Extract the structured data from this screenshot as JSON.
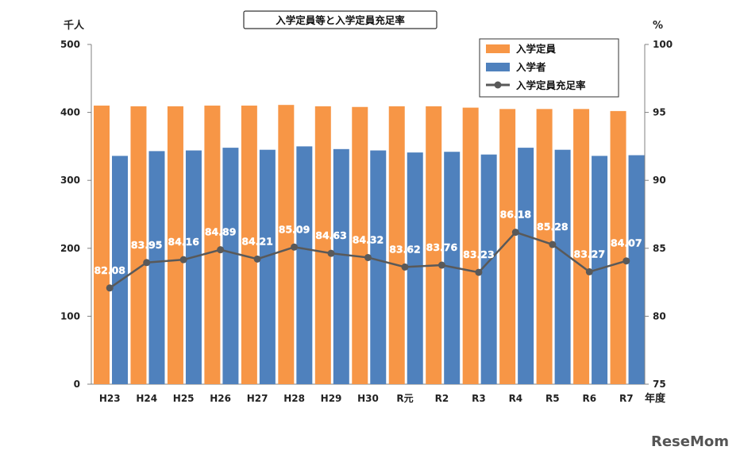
{
  "chart_data": {
    "type": "bar",
    "title": "入学定員等と入学定員充足率",
    "categories": [
      "H23",
      "H24",
      "H25",
      "H26",
      "H27",
      "H28",
      "H29",
      "H30",
      "R元",
      "R2",
      "R3",
      "R4",
      "R5",
      "R6",
      "R7"
    ],
    "x_axis_unit": "年度",
    "y_left": {
      "unit_label": "千人",
      "ylim": [
        0,
        500
      ],
      "ticks": [
        "0",
        "100",
        "200",
        "300",
        "400",
        "500"
      ]
    },
    "y_right": {
      "unit_label": "%",
      "ylim": [
        75,
        100
      ],
      "ticks": [
        "75",
        "80",
        "85",
        "90",
        "95",
        "100"
      ]
    },
    "series": [
      {
        "name": "入学定員",
        "axis": "left",
        "type": "bar",
        "color": "#F79646",
        "values": [
          410,
          409,
          409,
          410,
          410,
          411,
          409,
          408,
          409,
          409,
          407,
          405,
          405,
          405,
          402
        ]
      },
      {
        "name": "入学者",
        "axis": "left",
        "type": "bar",
        "color": "#4F81BD",
        "values": [
          336,
          343,
          344,
          348,
          345,
          350,
          346,
          344,
          341,
          342,
          338,
          348,
          345,
          336,
          337
        ]
      },
      {
        "name": "入学定員充足率",
        "axis": "right",
        "type": "line",
        "color": "#595959",
        "values": [
          82.08,
          83.95,
          84.16,
          84.89,
          84.21,
          85.09,
          84.63,
          84.32,
          83.62,
          83.76,
          83.23,
          86.18,
          85.28,
          83.27,
          84.07
        ],
        "labels": [
          "82.08",
          "83.95",
          "84.16",
          "84.89",
          "84.21",
          "85.09",
          "84.63",
          "84.32",
          "83.62",
          "83.76",
          "83.23",
          "86.18",
          "85.28",
          "83.27",
          "84.07"
        ]
      }
    ],
    "legend_position": "top-right",
    "grid": false
  },
  "watermark": "ReseMom"
}
